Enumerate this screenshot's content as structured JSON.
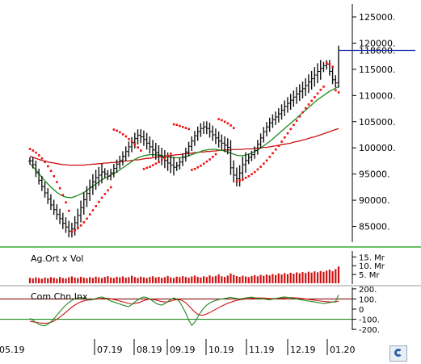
{
  "chart_data": [
    {
      "type": "candlestick",
      "panel": "price",
      "ylim": [
        82000,
        127000
      ],
      "y_ticks": [
        "125000.",
        "120000.",
        "118600.",
        "115000.",
        "110000.",
        "105000.",
        "100000.",
        "95000.",
        "90000.",
        "85000."
      ],
      "y_tick_values": [
        125000,
        120000,
        118600,
        115000,
        110000,
        105000,
        100000,
        95000,
        90000,
        85000
      ],
      "last_price_label": "118600.",
      "last_price": 118600,
      "x_labels": [
        "05.19",
        "07.19",
        "08.19",
        "09.19",
        "10.19",
        "11.19",
        "12.19",
        "01.20"
      ],
      "close": [
        97500,
        96800,
        95200,
        93800,
        92600,
        91400,
        90200,
        89100,
        88200,
        87300,
        86500,
        85600,
        84900,
        84100,
        84500,
        85700,
        87100,
        88600,
        90100,
        91300,
        92500,
        93500,
        94300,
        94800,
        95400,
        95000,
        94600,
        95200,
        96100,
        96900,
        97600,
        98400,
        99300,
        100200,
        101000,
        101800,
        102400,
        102100,
        101600,
        100900,
        100200,
        99600,
        99100,
        98600,
        98100,
        97600,
        97100,
        96700,
        96300,
        96600,
        97300,
        98200,
        99200,
        100300,
        101300,
        102300,
        103100,
        103700,
        104000,
        103700,
        103100,
        102500,
        101900,
        101300,
        100900,
        100500,
        100100,
        96200,
        94800,
        94100,
        95200,
        96800,
        97600,
        98200,
        98700,
        99500,
        100700,
        101900,
        103100,
        104000,
        104800,
        105400,
        105900,
        106500,
        107200,
        107900,
        108500,
        109100,
        109700,
        110300,
        110800,
        111300,
        111900,
        112600,
        113200,
        113900,
        114600,
        115200,
        115700,
        116000,
        114600,
        113000,
        112400,
        118600
      ],
      "series": [
        {
          "name": "SMA fast",
          "color": "#1f8a1f",
          "values": [
            97000,
            96400,
            95800,
            95100,
            94400,
            93700,
            93100,
            92500,
            92000,
            91500,
            91100,
            90800,
            90600,
            90500,
            90500,
            90700,
            90900,
            91200,
            91500,
            91900,
            92300,
            92700,
            93100,
            93500,
            93900,
            94200,
            94500,
            94800,
            95100,
            95400,
            95800,
            96200,
            96600,
            97000,
            97400,
            97800,
            98100,
            98300,
            98500,
            98600,
            98700,
            98700,
            98700,
            98600,
            98500,
            98400,
            98300,
            98200,
            98100,
            98100,
            98100,
            98200,
            98300,
            98500,
            98700,
            98900,
            99100,
            99300,
            99500,
            99600,
            99700,
            99700,
            99700,
            99600,
            99500,
            99400,
            99200,
            99000,
            98800,
            98600,
            98500,
            98500,
            98600,
            98800,
            99000,
            99300,
            99600,
            100000,
            100400,
            100800,
            101200,
            101700,
            102200,
            102700,
            103200,
            103700,
            104200,
            104700,
            105200,
            105700,
            106200,
            106700,
            107200,
            107700,
            108200,
            108700,
            109200,
            109600,
            110000,
            110400,
            110800,
            111100,
            111400,
            111700
          ]
        },
        {
          "name": "SMA slow",
          "color": "#cc1111",
          "values": [
            98400,
            98200,
            98000,
            97800,
            97600,
            97500,
            97300,
            97200,
            97100,
            97000,
            96900,
            96800,
            96800,
            96700,
            96700,
            96700,
            96700,
            96700,
            96700,
            96800,
            96800,
            96900,
            96900,
            97000,
            97000,
            97100,
            97100,
            97200,
            97200,
            97300,
            97300,
            97400,
            97500,
            97500,
            97600,
            97700,
            97700,
            97800,
            97900,
            98000,
            98000,
            98100,
            98200,
            98300,
            98300,
            98400,
            98500,
            98500,
            98600,
            98700,
            98700,
            98800,
            98900,
            98900,
            99000,
            99100,
            99100,
            99200,
            99200,
            99300,
            99300,
            99400,
            99400,
            99500,
            99500,
            99600,
            99600,
            99600,
            99700,
            99700,
            99700,
            99700,
            99800,
            99800,
            99800,
            99900,
            99900,
            100000,
            100100,
            100100,
            100200,
            100300,
            100400,
            100500,
            100600,
            100700,
            100800,
            100900,
            101100,
            101200,
            101300,
            101500,
            101600,
            101800,
            102000,
            102100,
            102300,
            102500,
            102700,
            102900,
            103100,
            103300,
            103500,
            103700
          ]
        },
        {
          "name": "SAR",
          "color": "#ee1111",
          "type": "scatter",
          "values": [
            99800,
            99500,
            99100,
            98600,
            98000,
            97300,
            96500,
            95600,
            94600,
            93500,
            92300,
            91000,
            89600,
            88000,
            84000,
            84300,
            84700,
            85200,
            85800,
            86500,
            87300,
            88100,
            88900,
            89700,
            90500,
            91200,
            91900,
            92500,
            103500,
            103300,
            103000,
            102600,
            102200,
            101700,
            101200,
            100700,
            100100,
            99500,
            96000,
            96200,
            96400,
            96700,
            97000,
            97300,
            97700,
            98100,
            98500,
            98900,
            104500,
            104400,
            104200,
            104000,
            103800,
            103600,
            95800,
            96000,
            96300,
            96600,
            97000,
            97400,
            97800,
            98300,
            98800,
            105500,
            105300,
            105000,
            104700,
            104300,
            103800,
            93600,
            93800,
            94000,
            94300,
            94600,
            95000,
            95400,
            95900,
            96400,
            97000,
            97600,
            98300,
            99000,
            99700,
            100400,
            101200,
            102000,
            102800,
            103600,
            104400,
            105200,
            106000,
            106800,
            107600,
            108300,
            109000,
            109700,
            110400,
            111100,
            111700,
            116200,
            116000,
            115500,
            111000,
            110600
          ]
        }
      ]
    },
    {
      "type": "bar",
      "panel": "volume",
      "label": "Ag.Ort x Vol",
      "y_ticks": [
        "15. Mr",
        "10. Mr",
        "5. Mr"
      ],
      "y_tick_values": [
        15,
        10,
        5
      ],
      "ylim": [
        0,
        17
      ],
      "color": "#cc1111",
      "values": [
        3.1,
        2.8,
        3.4,
        3.0,
        2.6,
        3.3,
        2.9,
        3.5,
        3.2,
        2.7,
        3.6,
        3.0,
        2.8,
        3.4,
        3.9,
        3.3,
        3.0,
        3.7,
        3.2,
        2.9,
        3.5,
        3.1,
        3.8,
        3.4,
        3.0,
        3.6,
        4.1,
        3.3,
        3.0,
        3.7,
        3.4,
        3.9,
        3.2,
        3.5,
        4.3,
        3.6,
        3.1,
        3.8,
        3.4,
        3.0,
        3.6,
        4.0,
        3.3,
        3.7,
        3.1,
        3.5,
        4.2,
        3.4,
        3.0,
        3.8,
        3.5,
        4.1,
        3.6,
        3.2,
        3.9,
        4.4,
        3.7,
        3.3,
        4.0,
        3.6,
        4.5,
        3.8,
        4.2,
        5.1,
        4.0,
        3.6,
        4.4,
        5.6,
        4.8,
        4.1,
        3.7,
        4.3,
        3.9,
        3.5,
        4.1,
        4.6,
        4.0,
        4.8,
        4.3,
        5.0,
        4.5,
        5.3,
        4.7,
        5.6,
        5.0,
        5.8,
        5.2,
        6.0,
        5.5,
        6.2,
        5.7,
        6.4,
        5.9,
        6.6,
        6.1,
        6.8,
        6.3,
        7.0,
        6.5,
        7.2,
        7.8,
        6.9,
        8.1,
        9.6
      ]
    },
    {
      "type": "line",
      "panel": "oscillator",
      "label": "Com.Chn.Inx",
      "y_ticks": [
        "200.",
        "100.",
        "0",
        "-100.",
        "-200."
      ],
      "y_tick_values": [
        200,
        100,
        0,
        -100,
        -200
      ],
      "ylim": [
        -215,
        215
      ],
      "reference_lines": [
        100,
        -100
      ],
      "series": [
        {
          "name": "CCI",
          "color": "#1f8a1f",
          "values": [
            -90,
            -110,
            -130,
            -150,
            -160,
            -165,
            -150,
            -125,
            -95,
            -60,
            -25,
            10,
            40,
            65,
            85,
            100,
            110,
            115,
            110,
            100,
            90,
            95,
            105,
            115,
            120,
            110,
            95,
            80,
            70,
            60,
            50,
            40,
            30,
            25,
            45,
            70,
            90,
            110,
            120,
            115,
            100,
            80,
            60,
            45,
            40,
            55,
            75,
            95,
            110,
            100,
            70,
            20,
            -40,
            -110,
            -160,
            -130,
            -80,
            -30,
            10,
            40,
            60,
            75,
            85,
            95,
            100,
            105,
            110,
            115,
            110,
            105,
            100,
            105,
            110,
            115,
            118,
            112,
            108,
            104,
            100,
            96,
            92,
            98,
            104,
            110,
            116,
            120,
            115,
            110,
            105,
            100,
            95,
            90,
            85,
            80,
            75,
            70,
            65,
            60,
            55,
            60,
            65,
            70,
            75,
            140
          ]
        },
        {
          "name": "Signal",
          "color": "#cc1111",
          "values": [
            -120,
            -125,
            -130,
            -135,
            -138,
            -140,
            -138,
            -130,
            -118,
            -100,
            -80,
            -55,
            -30,
            -5,
            20,
            40,
            58,
            72,
            82,
            88,
            92,
            95,
            98,
            102,
            106,
            108,
            106,
            101,
            95,
            88,
            80,
            72,
            64,
            56,
            52,
            55,
            62,
            72,
            84,
            93,
            98,
            96,
            90,
            82,
            74,
            70,
            72,
            79,
            88,
            94,
            92,
            82,
            62,
            34,
            2,
            -28,
            -50,
            -60,
            -58,
            -48,
            -34,
            -18,
            -2,
            14,
            30,
            44,
            57,
            68,
            78,
            86,
            92,
            96,
            100,
            104,
            107,
            109,
            110,
            110,
            109,
            107,
            105,
            104,
            104,
            105,
            107,
            110,
            112,
            113,
            112,
            110,
            107,
            104,
            100,
            96,
            92,
            88,
            84,
            80,
            76,
            73,
            71,
            70,
            71,
            80
          ]
        }
      ]
    }
  ]
}
